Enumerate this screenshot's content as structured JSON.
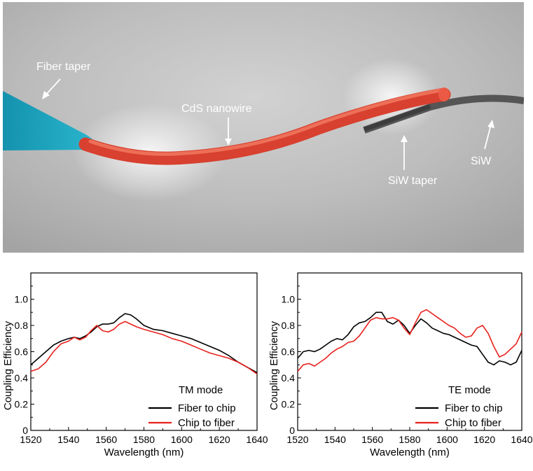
{
  "scene": {
    "labels": {
      "fiber_taper": "Fiber taper",
      "nanowire": "CdS nanowire",
      "siw_taper": "SiW taper",
      "siw": "SiW"
    },
    "colors": {
      "fiber": "#1aa3bf",
      "nanowire": "#e8483a",
      "siw": "#4d4d4d",
      "background": "#b9b9b9"
    }
  },
  "chart_data": [
    {
      "type": "line",
      "xlabel": "Wavelength (nm)",
      "ylabel": "Coupling  Efficiency",
      "xlim": [
        1520,
        1640
      ],
      "ylim": [
        0,
        1.2
      ],
      "xticks": [
        1520,
        1540,
        1560,
        1580,
        1600,
        1620,
        1640
      ],
      "yticks": [
        0,
        0.2,
        0.4,
        0.6,
        0.8,
        1.0
      ],
      "ytick_labels": [
        "0",
        "0.2",
        "0.4",
        "0.6",
        "0.8",
        "1.0"
      ],
      "grid": false,
      "annotation": "TM mode",
      "legend_position": "bottom-right",
      "series": [
        {
          "name": "Fiber to chip",
          "color": "#000000",
          "x": [
            1520,
            1524,
            1528,
            1532,
            1536,
            1540,
            1543,
            1546,
            1549,
            1552,
            1555,
            1558,
            1561,
            1564,
            1567,
            1570,
            1573,
            1576,
            1580,
            1585,
            1590,
            1595,
            1600,
            1605,
            1610,
            1615,
            1620,
            1625,
            1630,
            1635,
            1640
          ],
          "y": [
            0.5,
            0.55,
            0.6,
            0.65,
            0.68,
            0.7,
            0.71,
            0.7,
            0.72,
            0.75,
            0.79,
            0.81,
            0.81,
            0.82,
            0.86,
            0.89,
            0.88,
            0.85,
            0.8,
            0.77,
            0.76,
            0.74,
            0.72,
            0.7,
            0.67,
            0.64,
            0.61,
            0.57,
            0.52,
            0.48,
            0.44
          ]
        },
        {
          "name": "Chip to fiber",
          "color": "#e8201c",
          "x": [
            1520,
            1524,
            1528,
            1532,
            1536,
            1540,
            1543,
            1546,
            1549,
            1552,
            1555,
            1558,
            1561,
            1564,
            1567,
            1570,
            1573,
            1576,
            1580,
            1585,
            1590,
            1595,
            1600,
            1605,
            1610,
            1615,
            1620,
            1625,
            1630,
            1635,
            1640
          ],
          "y": [
            0.45,
            0.47,
            0.52,
            0.6,
            0.66,
            0.68,
            0.71,
            0.69,
            0.71,
            0.76,
            0.8,
            0.76,
            0.75,
            0.77,
            0.81,
            0.83,
            0.81,
            0.79,
            0.77,
            0.75,
            0.73,
            0.7,
            0.68,
            0.65,
            0.62,
            0.59,
            0.57,
            0.55,
            0.52,
            0.48,
            0.43
          ]
        }
      ]
    },
    {
      "type": "line",
      "xlabel": "Wavelength (nm)",
      "ylabel": "Coupling  Efficiency",
      "xlim": [
        1520,
        1640
      ],
      "ylim": [
        0,
        1.2
      ],
      "xticks": [
        1520,
        1540,
        1560,
        1580,
        1600,
        1620,
        1640
      ],
      "yticks": [
        0,
        0.2,
        0.4,
        0.6,
        0.8,
        1.0
      ],
      "ytick_labels": [
        "0",
        "0.2",
        "0.4",
        "0.6",
        "0.8",
        "1.0"
      ],
      "grid": false,
      "annotation": "TE mode",
      "legend_position": "bottom-right",
      "series": [
        {
          "name": "Fiber to chip",
          "color": "#000000",
          "x": [
            1520,
            1523,
            1526,
            1529,
            1532,
            1535,
            1538,
            1541,
            1544,
            1547,
            1550,
            1553,
            1556,
            1559,
            1562,
            1565,
            1568,
            1571,
            1574,
            1577,
            1580,
            1583,
            1586,
            1589,
            1592,
            1595,
            1598,
            1601,
            1604,
            1607,
            1610,
            1613,
            1616,
            1619,
            1622,
            1625,
            1628,
            1631,
            1634,
            1637,
            1640
          ],
          "y": [
            0.55,
            0.6,
            0.61,
            0.6,
            0.62,
            0.65,
            0.68,
            0.7,
            0.69,
            0.73,
            0.79,
            0.82,
            0.83,
            0.86,
            0.9,
            0.9,
            0.83,
            0.81,
            0.84,
            0.8,
            0.74,
            0.8,
            0.85,
            0.82,
            0.78,
            0.76,
            0.74,
            0.73,
            0.71,
            0.69,
            0.67,
            0.65,
            0.64,
            0.58,
            0.52,
            0.5,
            0.53,
            0.52,
            0.5,
            0.52,
            0.61
          ]
        },
        {
          "name": "Chip to fiber",
          "color": "#e8201c",
          "x": [
            1520,
            1523,
            1526,
            1529,
            1532,
            1535,
            1538,
            1541,
            1544,
            1547,
            1550,
            1553,
            1556,
            1559,
            1562,
            1565,
            1568,
            1571,
            1574,
            1577,
            1580,
            1583,
            1586,
            1589,
            1592,
            1595,
            1598,
            1601,
            1604,
            1607,
            1610,
            1613,
            1616,
            1619,
            1622,
            1625,
            1628,
            1631,
            1634,
            1637,
            1640
          ],
          "y": [
            0.45,
            0.5,
            0.51,
            0.49,
            0.52,
            0.55,
            0.59,
            0.62,
            0.64,
            0.67,
            0.68,
            0.72,
            0.78,
            0.84,
            0.86,
            0.85,
            0.85,
            0.86,
            0.84,
            0.78,
            0.73,
            0.82,
            0.9,
            0.92,
            0.89,
            0.86,
            0.83,
            0.8,
            0.78,
            0.74,
            0.71,
            0.72,
            0.78,
            0.8,
            0.74,
            0.64,
            0.56,
            0.58,
            0.62,
            0.66,
            0.75
          ]
        }
      ]
    }
  ]
}
